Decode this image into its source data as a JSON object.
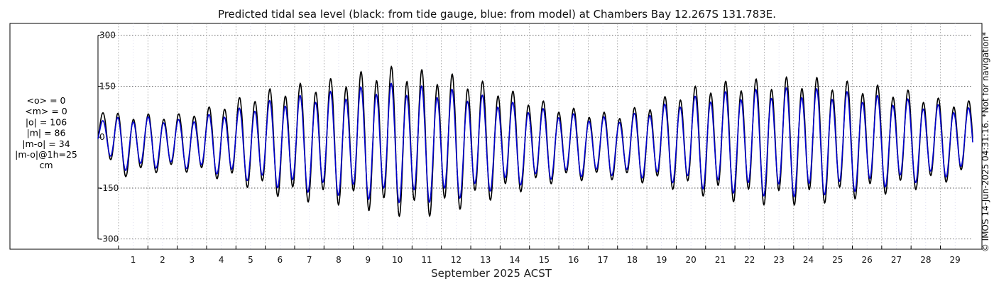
{
  "chart_data": {
    "type": "line",
    "title": "Predicted tidal sea level (black: from tide gauge, blue: from model) at Chambers Bay 12.267S 131.783E.",
    "xlabel": "September 2025 ACST",
    "ylabel": "",
    "x_tick_labels": [
      "1",
      "2",
      "3",
      "4",
      "5",
      "6",
      "7",
      "8",
      "9",
      "10",
      "11",
      "12",
      "13",
      "14",
      "15",
      "16",
      "17",
      "18",
      "19",
      "20",
      "21",
      "22",
      "23",
      "24",
      "25",
      "26",
      "27",
      "28",
      "29"
    ],
    "x_range_days": [
      0.3,
      30.1
    ],
    "y_ticks": [
      300,
      150,
      0,
      -150,
      -300
    ],
    "y_tick_labels": [
      "300",
      "150",
      "0",
      "-150",
      "-300"
    ],
    "ylim": [
      -330,
      335
    ],
    "grid": true,
    "series": [
      {
        "name": "black: from tide gauge",
        "color": "#000000",
        "envelope_days": [
          0.3,
          1,
          2,
          3,
          4,
          5,
          6,
          7,
          8,
          9,
          10,
          11,
          12,
          13,
          14,
          15,
          16,
          17,
          18,
          19,
          20,
          21,
          22,
          23,
          24,
          25,
          26,
          27,
          28,
          29,
          30.1
        ],
        "envelope_max": [
          92,
          75,
          73,
          72,
          92,
          120,
          148,
          165,
          178,
          197,
          222,
          214,
          203,
          185,
          158,
          125,
          100,
          82,
          76,
          105,
          140,
          168,
          177,
          183,
          188,
          185,
          172,
          160,
          145,
          120,
          112
        ],
        "envelope_min": [
          -32,
          -122,
          -110,
          -100,
          -118,
          -140,
          -170,
          -192,
          -202,
          -208,
          -235,
          -243,
          -236,
          -208,
          -182,
          -158,
          -135,
          -130,
          -128,
          -140,
          -160,
          -180,
          -196,
          -205,
          -206,
          -200,
          -188,
          -174,
          -162,
          -140,
          -118
        ],
        "envelope_mean": [
          35,
          0,
          -5,
          -10,
          -10,
          -8,
          -5,
          -3,
          0,
          2,
          0,
          -2,
          -5,
          -3,
          0,
          2,
          5,
          8,
          5,
          2,
          0,
          -2,
          0,
          -2,
          -4,
          -4,
          -2,
          0,
          -2,
          0,
          5
        ]
      },
      {
        "name": "blue: from model",
        "color": "#0000cc",
        "envelope_days": [
          0.3,
          1,
          2,
          3,
          4,
          5,
          6,
          7,
          8,
          9,
          10,
          11,
          12,
          13,
          14,
          15,
          16,
          17,
          18,
          19,
          20,
          21,
          22,
          23,
          24,
          25,
          26,
          27,
          28,
          29,
          30.1
        ],
        "envelope_max": [
          60,
          62,
          64,
          55,
          70,
          88,
          112,
          128,
          140,
          152,
          170,
          162,
          155,
          140,
          118,
          98,
          80,
          68,
          62,
          85,
          115,
          135,
          145,
          150,
          155,
          150,
          140,
          128,
          118,
          100,
          90
        ],
        "envelope_min": [
          -28,
          -102,
          -95,
          -90,
          -105,
          -122,
          -146,
          -162,
          -172,
          -180,
          -195,
          -200,
          -195,
          -178,
          -155,
          -140,
          -122,
          -118,
          -115,
          -125,
          -140,
          -158,
          -170,
          -178,
          -180,
          -175,
          -165,
          -152,
          -140,
          -124,
          -104
        ],
        "envelope_mean": [
          30,
          0,
          -5,
          -10,
          -10,
          -8,
          -5,
          -3,
          0,
          2,
          0,
          -2,
          -5,
          -3,
          0,
          2,
          5,
          8,
          5,
          2,
          0,
          -2,
          0,
          -2,
          -4,
          -4,
          -2,
          0,
          -2,
          0,
          5
        ]
      }
    ]
  },
  "stats": {
    "lines": [
      "<o> = 0",
      "<m> = 0",
      "|o| = 106",
      "|m| = 86",
      "|m-o| = 34",
      "|m-o|@1h=25",
      "cm"
    ]
  },
  "side_note": "© IMOS 14-Jun-2025 04:31:16. *Not for navigation*"
}
